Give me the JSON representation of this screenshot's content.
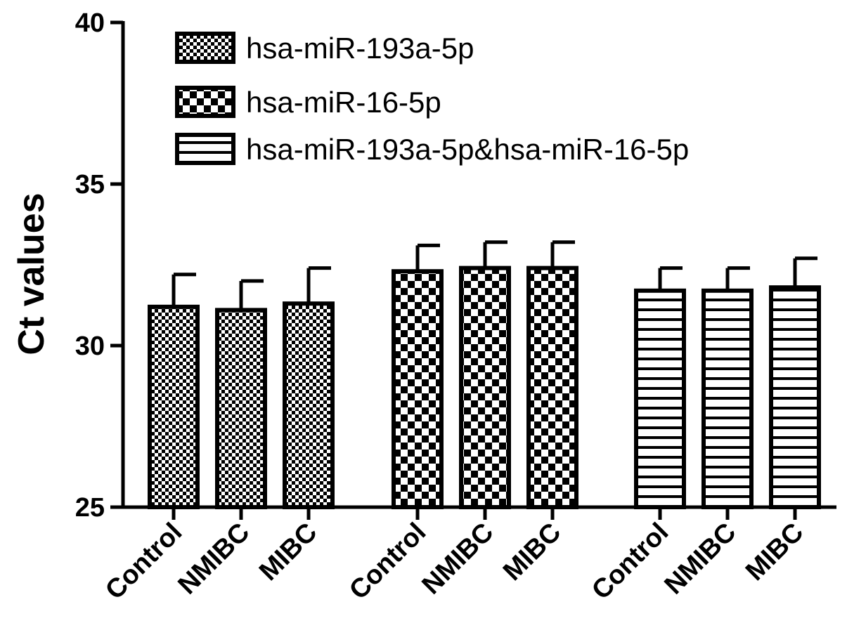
{
  "chart_data": {
    "type": "bar",
    "title": "",
    "xlabel": "",
    "ylabel": "Ct values",
    "ylim": [
      25,
      40
    ],
    "yticks": [
      25,
      30,
      35,
      40
    ],
    "grid": false,
    "legend_position": "top",
    "series": [
      {
        "name": "hsa-miR-193a-5p",
        "pattern": "fine-checker",
        "categories": [
          "Control",
          "NMIBC",
          "MIBC"
        ],
        "values": [
          31.2,
          31.1,
          31.3
        ],
        "errors": [
          1.0,
          0.9,
          1.1
        ]
      },
      {
        "name": "hsa-miR-16-5p",
        "pattern": "coarse-checker",
        "categories": [
          "Control",
          "NMIBC",
          "MIBC"
        ],
        "values": [
          32.3,
          32.4,
          32.4
        ],
        "errors": [
          0.8,
          0.8,
          0.8
        ]
      },
      {
        "name": "hsa-miR-193a-5p&hsa-miR-16-5p",
        "pattern": "horizontal-stripes",
        "categories": [
          "Control",
          "NMIBC",
          "MIBC"
        ],
        "values": [
          31.7,
          31.7,
          31.8
        ],
        "errors": [
          0.7,
          0.7,
          0.9
        ]
      }
    ],
    "colors": {
      "stroke": "#000000",
      "fill": "#ffffff"
    }
  }
}
